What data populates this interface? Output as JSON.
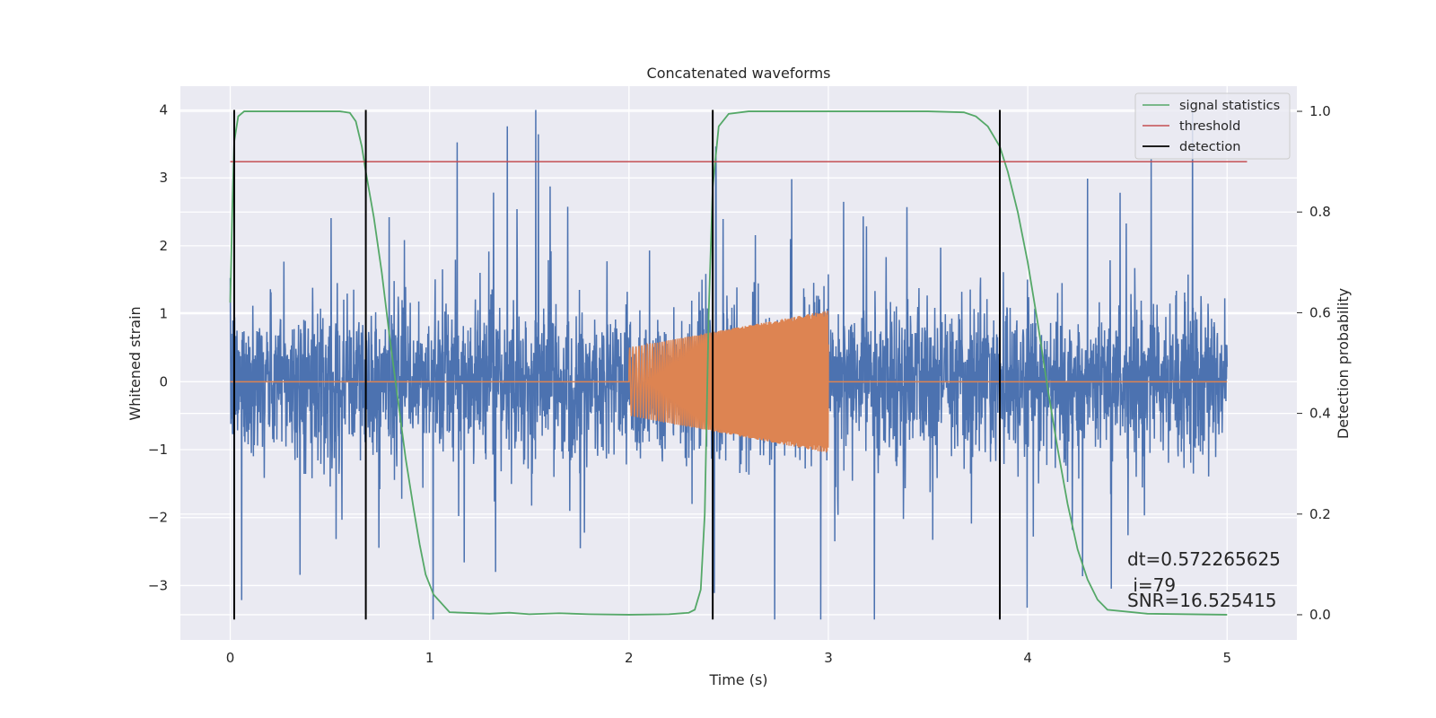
{
  "chart_data": {
    "type": "line",
    "title": "Concatenated waveforms",
    "xlabel": "Time (s)",
    "ylabel_left": "Whitened strain",
    "ylabel_right": "Detection probability",
    "xlim": [
      -0.25,
      5.35
    ],
    "ylim_left": [
      -3.8,
      4.35
    ],
    "ylim_right": [
      -0.05,
      1.05
    ],
    "x_ticks": [
      0,
      1,
      2,
      3,
      4,
      5
    ],
    "y_ticks_left": [
      4,
      3,
      2,
      1,
      0,
      -1,
      -2,
      -3
    ],
    "y_ticks_right": [
      1.0,
      0.8,
      0.6,
      0.4,
      0.2,
      0.0
    ],
    "x_tick_labels": [
      "0",
      "1",
      "2",
      "3",
      "4",
      "5"
    ],
    "y_tick_labels_left": [
      "4",
      "3",
      "2",
      "1",
      "0",
      "−1",
      "−2",
      "−3"
    ],
    "y_tick_labels_right": [
      "1.0",
      "0.8",
      "0.6",
      "0.4",
      "0.2",
      "0.0"
    ],
    "grid": true,
    "legend_placement": "top-right",
    "series": [
      {
        "role": "noisy-strain",
        "axis": "left",
        "color": "#4c72b0",
        "t_range": [
          0,
          5
        ],
        "approx_amplitude": 1.0,
        "approx_max": 4.0,
        "approx_min": -3.5
      },
      {
        "role": "injected-chirp",
        "axis": "left",
        "color": "#dd8452",
        "flat_value": 0,
        "chirp_t_range": [
          2.0,
          3.0
        ],
        "chirp_amplitude_start": 0.5,
        "chirp_amplitude_end": 1.05
      },
      {
        "name": "signal statistics",
        "axis": "right",
        "color": "#55a868",
        "x": [
          0,
          0.01,
          0.02,
          0.04,
          0.07,
          0.1,
          0.2,
          0.4,
          0.55,
          0.6,
          0.63,
          0.66,
          0.68,
          0.72,
          0.76,
          0.8,
          0.84,
          0.88,
          0.92,
          0.95,
          0.98,
          1.02,
          1.1,
          1.3,
          1.4,
          1.5,
          1.65,
          1.8,
          2.0,
          2.2,
          2.3,
          2.33,
          2.36,
          2.38,
          2.4,
          2.42,
          2.45,
          2.5,
          2.6,
          3.0,
          3.5,
          3.68,
          3.74,
          3.8,
          3.86,
          3.9,
          3.95,
          4.0,
          4.05,
          4.1,
          4.15,
          4.2,
          4.25,
          4.3,
          4.35,
          4.4,
          4.6,
          5.0
        ],
        "y": [
          0.62,
          0.8,
          0.94,
          0.99,
          1.0,
          1.0,
          1.0,
          1.0,
          1.0,
          0.997,
          0.98,
          0.93,
          0.88,
          0.79,
          0.68,
          0.55,
          0.43,
          0.31,
          0.21,
          0.14,
          0.08,
          0.04,
          0.005,
          0.002,
          0.004,
          0.001,
          0.003,
          0.001,
          0.0,
          0.001,
          0.004,
          0.01,
          0.05,
          0.2,
          0.6,
          0.85,
          0.97,
          0.995,
          1.0,
          1.0,
          1.0,
          0.998,
          0.99,
          0.97,
          0.93,
          0.88,
          0.8,
          0.7,
          0.58,
          0.45,
          0.33,
          0.22,
          0.13,
          0.07,
          0.03,
          0.01,
          0.002,
          0.0
        ]
      },
      {
        "name": "threshold",
        "axis": "right",
        "color": "#c44e52",
        "x": [
          0,
          5.1
        ],
        "y": [
          0.9,
          0.9
        ]
      },
      {
        "name": "detection",
        "axis": "left",
        "color": "#000000",
        "x_positions": [
          0.02,
          0.68,
          2.42,
          3.86
        ],
        "y_range": [
          -3.5,
          4.0
        ]
      }
    ],
    "annotations": [
      "dt=0.572265625",
      " i=79",
      "SNR=16.525415"
    ]
  }
}
